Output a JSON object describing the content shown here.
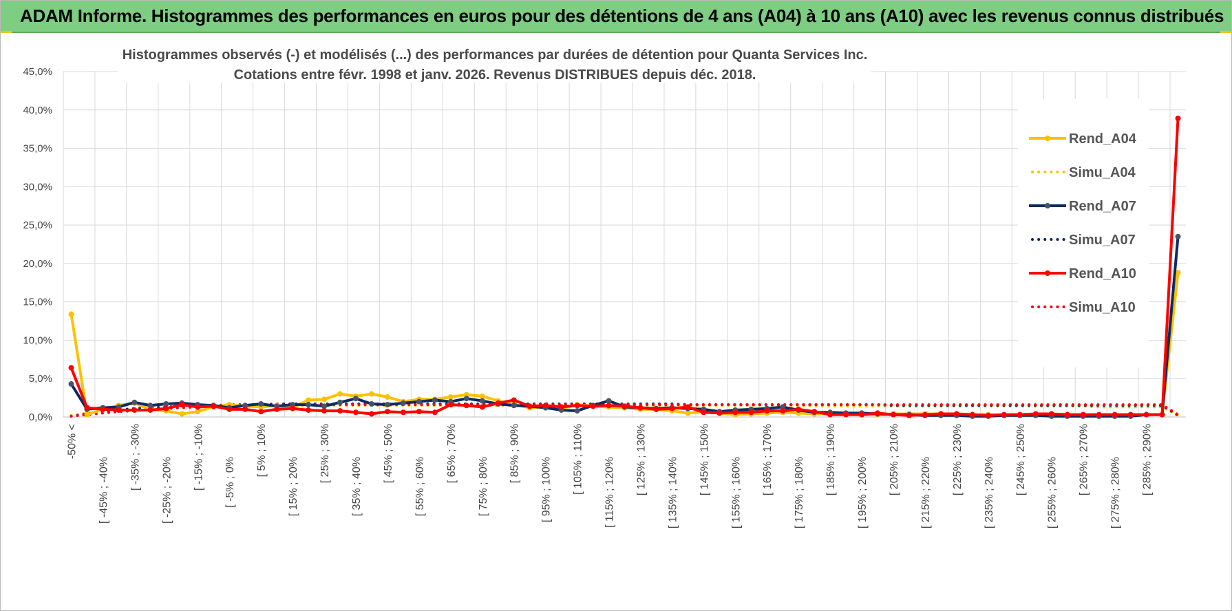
{
  "header": {
    "banner_title": "ADAM Informe. Histogrammes des performances en euros pour des détentions de 4 ans (A04) à 10 ans (A10) avec les revenus connus distribués"
  },
  "colors": {
    "banner_bg": "#7dcd82",
    "a04": "#ffc000",
    "a07": "#0d2a64",
    "a07_marker": "#44546a",
    "a10": "#ff0000"
  },
  "chart_data": {
    "type": "line",
    "title_line1": "Histogrammes observés (-) et modélisés (...) des performances par durées de détention pour Quanta Services Inc.",
    "title_line2": "Cotations entre févr. 1998 et janv. 2026. Revenus DISTRIBUES depuis déc. 2018.",
    "ylim": [
      0,
      45
    ],
    "y_ticks": [
      "0,0%",
      "5,0%",
      "10,0%",
      "15,0%",
      "20,0%",
      "25,0%",
      "30,0%",
      "35,0%",
      "40,0%",
      "45,0%"
    ],
    "grid": true,
    "legend_position": "top-right",
    "x_labels": [
      "-50% <",
      "[ -45% ; -40%",
      "[ -35% ; -30%",
      "[ -25% ; -20%",
      "[ -15% ; -10%",
      "[ -5% ; 0%",
      "[ 5% ; 10%",
      "[ 15% ; 20%",
      "[ 25% ; 30%",
      "[ 35% ; 40%",
      "[ 45% ; 50%",
      "[ 55% ; 60%",
      "[ 65% ; 70%",
      "[ 75% ; 80%",
      "[ 85% ; 90%",
      "[ 95% ; 100%",
      "[ 105% ; 110%",
      "[ 115% ; 120%",
      "[ 125% ; 130%",
      "[ 135% ; 140%",
      "[ 145% ; 150%",
      "[ 155% ; 160%",
      "[ 165% ; 170%",
      "[ 175% ; 180%",
      "[ 185% ; 190%",
      "[ 195% ; 200%",
      "[ 205% ; 210%",
      "[ 215% ; 220%",
      "[ 225% ; 230%",
      "[ 235% ; 240%",
      "[ 245% ; 250%",
      "[ 255% ; 260%",
      "[ 265% ; 270%",
      "[ 275% ; 280%",
      "[ 285% ; 290%"
    ],
    "n_categories": 71,
    "series": [
      {
        "name": "Rend_A04",
        "style": "solid",
        "values": [
          13.4,
          0.3,
          1.0,
          1.5,
          1.8,
          1.0,
          0.8,
          0.4,
          0.7,
          1.3,
          1.6,
          1.4,
          1.3,
          1.5,
          1.2,
          2.2,
          2.3,
          3.0,
          2.7,
          3.0,
          2.6,
          2.0,
          2.3,
          2.3,
          2.6,
          2.9,
          2.7,
          2.1,
          1.6,
          1.2,
          1.3,
          1.1,
          1.6,
          1.4,
          1.3,
          1.2,
          1.0,
          1.0,
          0.8,
          0.5,
          0.7,
          0.5,
          0.3,
          0.4,
          0.5,
          0.6,
          0.5,
          0.4,
          0.4,
          0.5,
          0.3,
          0.3,
          0.4,
          0.4,
          0.4,
          0.4,
          0.3,
          0.3,
          0.3,
          0.3,
          0.3,
          0.3,
          0.3,
          0.3,
          0.3,
          0.3,
          0.3,
          0.3,
          0.3,
          0.3,
          18.8
        ]
      },
      {
        "name": "Simu_A04",
        "style": "dotted",
        "values": [
          0.2,
          0.5,
          0.8,
          1.0,
          1.1,
          1.2,
          1.2,
          1.3,
          1.3,
          1.4,
          1.4,
          1.4,
          1.4,
          1.5,
          1.5,
          1.5,
          1.5,
          1.5,
          1.5,
          1.5,
          1.5,
          1.5,
          1.5,
          1.5,
          1.5,
          1.5,
          1.5,
          1.5,
          1.5,
          1.5,
          1.5,
          1.5,
          1.5,
          1.5,
          1.5,
          1.5,
          1.5,
          1.5,
          1.5,
          1.5,
          1.5,
          1.5,
          1.5,
          1.5,
          1.5,
          1.5,
          1.5,
          1.4,
          1.4,
          1.4,
          1.4,
          1.4,
          1.4,
          1.4,
          1.4,
          1.4,
          1.4,
          1.4,
          1.4,
          1.4,
          1.4,
          1.4,
          1.4,
          1.4,
          1.4,
          1.3,
          1.3,
          1.3,
          1.3,
          1.3,
          0.3
        ]
      },
      {
        "name": "Rend_A07",
        "style": "solid",
        "values": [
          4.3,
          1.0,
          1.2,
          1.3,
          1.9,
          1.5,
          1.7,
          1.8,
          1.6,
          1.5,
          1.2,
          1.5,
          1.7,
          1.4,
          1.6,
          1.6,
          1.4,
          1.9,
          2.4,
          1.7,
          1.6,
          1.8,
          2.0,
          2.2,
          2.0,
          2.4,
          2.1,
          1.7,
          1.5,
          1.4,
          1.2,
          0.9,
          0.8,
          1.5,
          2.1,
          1.3,
          1.2,
          1.1,
          1.2,
          1.1,
          1.0,
          0.7,
          0.9,
          1.0,
          1.1,
          1.3,
          0.9,
          0.6,
          0.6,
          0.5,
          0.5,
          0.4,
          0.3,
          0.3,
          0.2,
          0.2,
          0.2,
          0.1,
          0.1,
          0.2,
          0.2,
          0.2,
          0.1,
          0.1,
          0.1,
          0.1,
          0.1,
          0.1,
          0.3,
          0.3,
          23.5
        ]
      },
      {
        "name": "Simu_A07",
        "style": "dotted",
        "values": [
          0.1,
          0.4,
          0.7,
          0.9,
          1.1,
          1.2,
          1.3,
          1.4,
          1.5,
          1.5,
          1.6,
          1.6,
          1.6,
          1.7,
          1.7,
          1.7,
          1.7,
          1.7,
          1.7,
          1.7,
          1.7,
          1.7,
          1.7,
          1.7,
          1.7,
          1.7,
          1.7,
          1.7,
          1.7,
          1.7,
          1.7,
          1.7,
          1.7,
          1.7,
          1.7,
          1.7,
          1.7,
          1.7,
          1.7,
          1.6,
          1.6,
          1.6,
          1.6,
          1.6,
          1.6,
          1.6,
          1.6,
          1.6,
          1.6,
          1.6,
          1.6,
          1.6,
          1.5,
          1.5,
          1.5,
          1.5,
          1.5,
          1.5,
          1.5,
          1.5,
          1.5,
          1.5,
          1.5,
          1.5,
          1.5,
          1.5,
          1.5,
          1.5,
          1.5,
          1.5,
          0.2
        ]
      },
      {
        "name": "Rend_A10",
        "style": "solid",
        "values": [
          6.4,
          1.2,
          1.0,
          0.9,
          0.9,
          0.9,
          1.1,
          1.6,
          1.3,
          1.4,
          1.0,
          1.0,
          0.7,
          1.0,
          1.1,
          0.9,
          0.8,
          0.8,
          0.6,
          0.4,
          0.7,
          0.6,
          0.7,
          0.6,
          1.6,
          1.5,
          1.3,
          1.8,
          2.2,
          1.4,
          1.5,
          1.3,
          1.5,
          1.4,
          1.5,
          1.4,
          1.2,
          1.0,
          1.1,
          1.3,
          0.6,
          0.5,
          0.6,
          0.6,
          0.8,
          0.8,
          1.0,
          0.7,
          0.3,
          0.3,
          0.3,
          0.5,
          0.3,
          0.2,
          0.3,
          0.4,
          0.4,
          0.3,
          0.2,
          0.3,
          0.3,
          0.4,
          0.4,
          0.3,
          0.3,
          0.3,
          0.3,
          0.3,
          0.3,
          0.3,
          38.9
        ]
      },
      {
        "name": "Simu_A10",
        "style": "dotted",
        "values": [
          0.1,
          0.3,
          0.5,
          0.7,
          0.8,
          1.0,
          1.1,
          1.2,
          1.3,
          1.4,
          1.4,
          1.5,
          1.5,
          1.5,
          1.6,
          1.6,
          1.6,
          1.6,
          1.6,
          1.6,
          1.6,
          1.6,
          1.6,
          1.6,
          1.6,
          1.6,
          1.6,
          1.6,
          1.6,
          1.6,
          1.6,
          1.6,
          1.6,
          1.6,
          1.6,
          1.6,
          1.6,
          1.6,
          1.6,
          1.6,
          1.6,
          1.6,
          1.6,
          1.6,
          1.6,
          1.6,
          1.6,
          1.6,
          1.6,
          1.6,
          1.6,
          1.6,
          1.6,
          1.6,
          1.6,
          1.6,
          1.6,
          1.6,
          1.6,
          1.6,
          1.6,
          1.6,
          1.6,
          1.6,
          1.6,
          1.6,
          1.6,
          1.6,
          1.6,
          1.6,
          0.3
        ]
      }
    ]
  }
}
